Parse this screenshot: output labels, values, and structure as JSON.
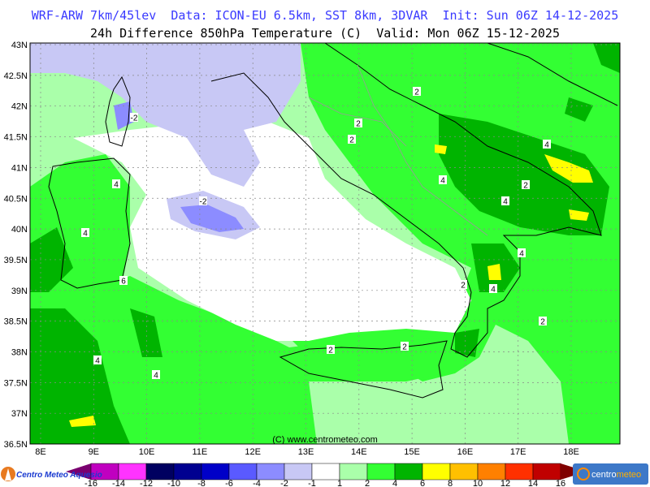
{
  "header": {
    "line1": "WRF-ARW 7km/45lev  Data: ICON-EU 6.5km, SST 8km, 3DVAR  Init: Sun 06Z 14-12-2025",
    "line2": "24h Difference 850hPa Temperature (C)  Valid: Mon 06Z 15-12-2025"
  },
  "map": {
    "lat_labels": [
      "43N",
      "42.5N",
      "42N",
      "41.5N",
      "41N",
      "40.5N",
      "40N",
      "39.5N",
      "39N",
      "38.5N",
      "38N",
      "37.5N",
      "37N",
      "36.5N"
    ],
    "lon_labels": [
      "8E",
      "9E",
      "10E",
      "11E",
      "12E",
      "13E",
      "14E",
      "15E",
      "16E",
      "17E",
      "18E"
    ],
    "copyright": "(C) www.centrometeo.com",
    "contour_labels": [
      "-2",
      "-2",
      "2",
      "2",
      "2",
      "2",
      "2",
      "2",
      "2",
      "2",
      "4",
      "4",
      "4",
      "4",
      "4",
      "4",
      "4",
      "4",
      "4",
      "6"
    ]
  },
  "colorbar": {
    "colors": [
      "#7a0070",
      "#c000c0",
      "#ff33ff",
      "#000060",
      "#000090",
      "#0000c8",
      "#5a5aff",
      "#8c8cff",
      "#c8c8f5",
      "#ffffff",
      "#aaffaa",
      "#33ff33",
      "#00b400",
      "#ffff00",
      "#ffc000",
      "#ff8000",
      "#ff3000",
      "#c00000",
      "#800000"
    ],
    "ticks": [
      "-16",
      "-14",
      "-12",
      "-10",
      "-8",
      "-6",
      "-4",
      "-2",
      "-1",
      "1",
      "2",
      "4",
      "6",
      "8",
      "10",
      "12",
      "14",
      "16"
    ]
  },
  "logos": {
    "left": "Centro Meteo Aquesio",
    "right": "centrometeo"
  }
}
